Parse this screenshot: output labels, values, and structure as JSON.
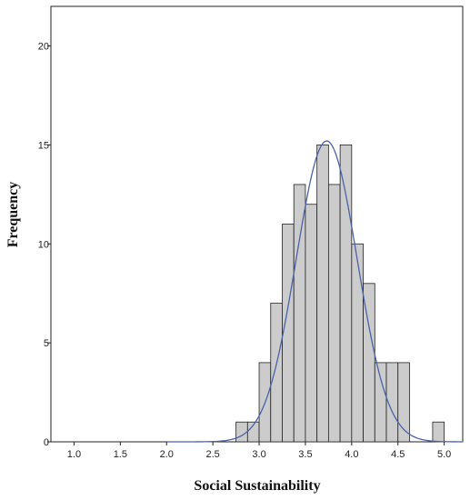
{
  "chart_data": {
    "type": "bar",
    "subtype": "histogram",
    "xlabel": "Social Sustainability",
    "ylabel": "Frequency",
    "xlim": [
      0.75,
      5.2
    ],
    "ylim": [
      0,
      22
    ],
    "xticks": [
      1.0,
      1.5,
      2.0,
      2.5,
      3.0,
      3.5,
      4.0,
      4.5,
      5.0
    ],
    "xtick_labels": [
      "1.0",
      "1.5",
      "2.0",
      "2.5",
      "3.0",
      "3.5",
      "4.0",
      "4.5",
      "5.0"
    ],
    "yticks": [
      0,
      5,
      10,
      15,
      20
    ],
    "ytick_labels": [
      "0",
      "5",
      "10",
      "15",
      "20"
    ],
    "bin_width": 0.125,
    "bins": [
      {
        "x0": 2.75,
        "x1": 2.875,
        "count": 1
      },
      {
        "x0": 2.875,
        "x1": 3.0,
        "count": 1
      },
      {
        "x0": 3.0,
        "x1": 3.125,
        "count": 4
      },
      {
        "x0": 3.125,
        "x1": 3.25,
        "count": 7
      },
      {
        "x0": 3.25,
        "x1": 3.375,
        "count": 11
      },
      {
        "x0": 3.375,
        "x1": 3.5,
        "count": 13
      },
      {
        "x0": 3.5,
        "x1": 3.625,
        "count": 12
      },
      {
        "x0": 3.625,
        "x1": 3.75,
        "count": 15
      },
      {
        "x0": 3.75,
        "x1": 3.875,
        "count": 13
      },
      {
        "x0": 3.875,
        "x1": 4.0,
        "count": 15
      },
      {
        "x0": 4.0,
        "x1": 4.125,
        "count": 10
      },
      {
        "x0": 4.125,
        "x1": 4.25,
        "count": 8
      },
      {
        "x0": 4.25,
        "x1": 4.375,
        "count": 4
      },
      {
        "x0": 4.375,
        "x1": 4.5,
        "count": 4
      },
      {
        "x0": 4.5,
        "x1": 4.625,
        "count": 4
      },
      {
        "x0": 4.875,
        "x1": 5.0,
        "count": 1
      }
    ],
    "normal_curve": {
      "mean": 3.73,
      "sd": 0.33,
      "peak": 15.2
    },
    "grid": false,
    "colors": {
      "bar_fill": "#cccccc",
      "bar_stroke": "#222222",
      "curve": "#4a63a8"
    }
  }
}
